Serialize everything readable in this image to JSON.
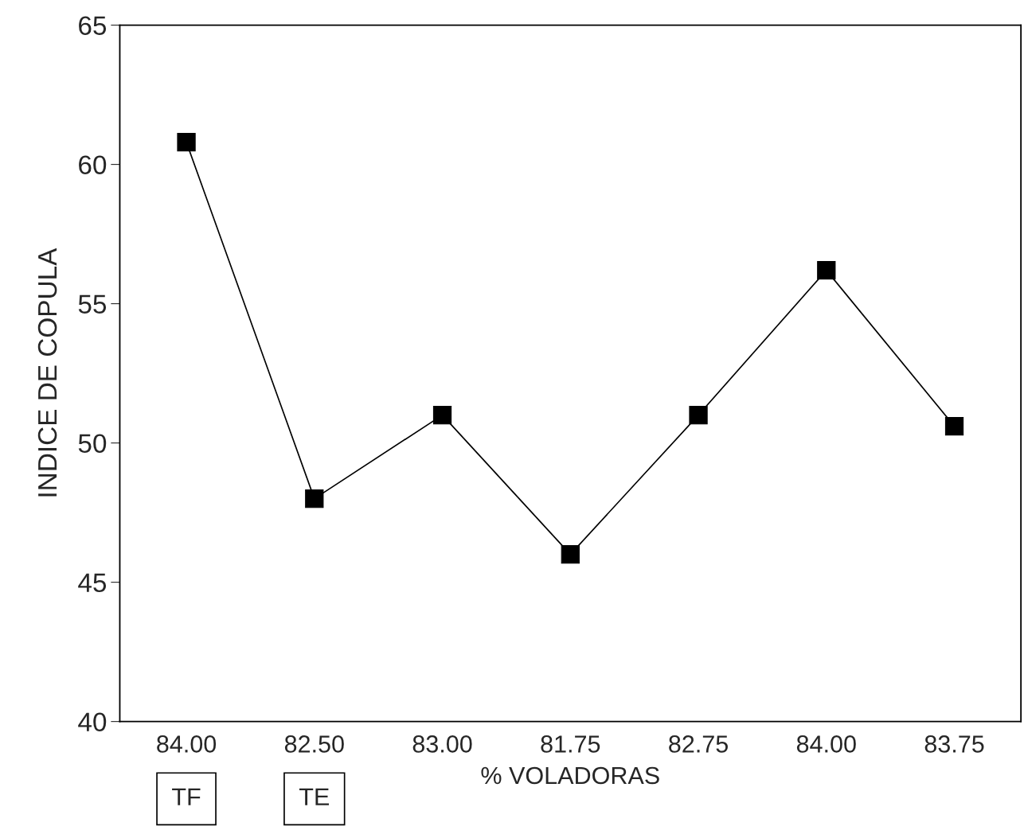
{
  "chart_data": {
    "type": "line",
    "xlabel": "% VOLADORAS",
    "ylabel": "INDICE DE COPULA",
    "categories": [
      "84.00",
      "82.50",
      "83.00",
      "81.75",
      "82.75",
      "84.00",
      "83.75"
    ],
    "series": [
      {
        "color": "#000000",
        "values": [
          60.8,
          48.0,
          51.0,
          46.0,
          51.0,
          56.2,
          50.6
        ]
      }
    ],
    "ylim": [
      40,
      65
    ],
    "yticks": [
      40,
      45,
      50,
      55,
      60,
      65
    ],
    "marker": "square",
    "line_style": "solid",
    "grid": false,
    "legend": false,
    "annotations": [
      "TF",
      "TE"
    ]
  }
}
